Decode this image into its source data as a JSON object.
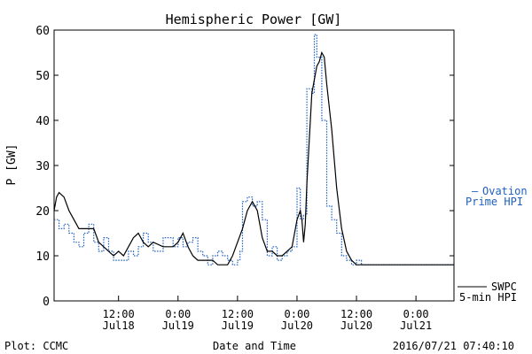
{
  "chart_data": {
    "type": "line",
    "title": "Hemispheric Power [GW]",
    "xlabel": "Date and Time",
    "ylabel": "P [GW]",
    "ylim": [
      0,
      60
    ],
    "yticks": [
      0,
      10,
      20,
      30,
      40,
      50,
      60
    ],
    "xlim": [
      "2016-07-17T23:00",
      "2016-07-21T07:40"
    ],
    "xticks": [
      {
        "t": "2016-07-18T12:00",
        "label1": "12:00",
        "label2": "Jul18"
      },
      {
        "t": "2016-07-19T00:00",
        "label1": "0:00",
        "label2": "Jul19"
      },
      {
        "t": "2016-07-19T12:00",
        "label1": "12:00",
        "label2": "Jul19"
      },
      {
        "t": "2016-07-20T00:00",
        "label1": "0:00",
        "label2": "Jul20"
      },
      {
        "t": "2016-07-20T12:00",
        "label1": "12:00",
        "label2": "Jul20"
      },
      {
        "t": "2016-07-21T00:00",
        "label1": "0:00",
        "label2": "Jul21"
      }
    ],
    "grid": false,
    "series": [
      {
        "name": "Ovation Prime HPI",
        "color": "#1f5fbf",
        "style": "dotted-step",
        "points": [
          [
            "2016-07-17T23:00",
            18
          ],
          [
            "2016-07-18T00:00",
            16
          ],
          [
            "2016-07-18T01:00",
            17
          ],
          [
            "2016-07-18T02:00",
            15
          ],
          [
            "2016-07-18T03:00",
            13
          ],
          [
            "2016-07-18T04:00",
            12
          ],
          [
            "2016-07-18T05:00",
            15
          ],
          [
            "2016-07-18T06:00",
            17
          ],
          [
            "2016-07-18T07:00",
            13
          ],
          [
            "2016-07-18T08:00",
            11
          ],
          [
            "2016-07-18T09:00",
            14
          ],
          [
            "2016-07-18T10:00",
            11
          ],
          [
            "2016-07-18T11:00",
            9
          ],
          [
            "2016-07-18T13:00",
            9
          ],
          [
            "2016-07-18T14:00",
            11
          ],
          [
            "2016-07-18T15:00",
            10
          ],
          [
            "2016-07-18T16:00",
            12
          ],
          [
            "2016-07-18T17:00",
            15
          ],
          [
            "2016-07-18T18:00",
            13
          ],
          [
            "2016-07-18T19:00",
            11
          ],
          [
            "2016-07-18T21:00",
            14
          ],
          [
            "2016-07-18T23:00",
            12
          ],
          [
            "2016-07-19T00:00",
            14
          ],
          [
            "2016-07-19T01:00",
            12
          ],
          [
            "2016-07-19T02:00",
            13
          ],
          [
            "2016-07-19T03:00",
            14
          ],
          [
            "2016-07-19T04:00",
            11
          ],
          [
            "2016-07-19T05:00",
            10
          ],
          [
            "2016-07-19T06:00",
            8
          ],
          [
            "2016-07-19T07:00",
            10
          ],
          [
            "2016-07-19T08:00",
            11
          ],
          [
            "2016-07-19T09:00",
            10
          ],
          [
            "2016-07-19T10:00",
            9
          ],
          [
            "2016-07-19T11:00",
            8
          ],
          [
            "2016-07-19T12:00",
            9
          ],
          [
            "2016-07-19T12:30",
            11
          ],
          [
            "2016-07-19T13:00",
            22
          ],
          [
            "2016-07-19T14:00",
            23
          ],
          [
            "2016-07-19T15:00",
            21
          ],
          [
            "2016-07-19T16:00",
            22
          ],
          [
            "2016-07-19T17:00",
            18
          ],
          [
            "2016-07-19T18:00",
            10
          ],
          [
            "2016-07-19T19:00",
            12
          ],
          [
            "2016-07-19T20:00",
            9
          ],
          [
            "2016-07-19T21:00",
            10
          ],
          [
            "2016-07-19T22:00",
            11
          ],
          [
            "2016-07-19T23:00",
            12
          ],
          [
            "2016-07-20T00:00",
            25
          ],
          [
            "2016-07-20T00:40",
            18
          ],
          [
            "2016-07-20T01:20",
            19
          ],
          [
            "2016-07-20T02:00",
            47
          ],
          [
            "2016-07-20T03:00",
            46
          ],
          [
            "2016-07-20T03:30",
            59
          ],
          [
            "2016-07-20T04:00",
            54
          ],
          [
            "2016-07-20T05:00",
            40
          ],
          [
            "2016-07-20T06:00",
            21
          ],
          [
            "2016-07-20T07:00",
            18
          ],
          [
            "2016-07-20T08:00",
            15
          ],
          [
            "2016-07-20T09:00",
            10
          ],
          [
            "2016-07-20T10:00",
            9
          ],
          [
            "2016-07-20T11:00",
            8
          ],
          [
            "2016-07-20T12:00",
            9
          ],
          [
            "2016-07-20T13:00",
            8
          ],
          [
            "2016-07-21T07:40",
            8
          ]
        ]
      },
      {
        "name": "SWPC 5-min HPI",
        "color": "#000000",
        "style": "solid",
        "points": [
          [
            "2016-07-17T23:00",
            20
          ],
          [
            "2016-07-17T23:30",
            23
          ],
          [
            "2016-07-18T00:00",
            24
          ],
          [
            "2016-07-18T01:00",
            23
          ],
          [
            "2016-07-18T02:00",
            20
          ],
          [
            "2016-07-18T03:00",
            18
          ],
          [
            "2016-07-18T04:00",
            16
          ],
          [
            "2016-07-18T07:00",
            16
          ],
          [
            "2016-07-18T08:00",
            13
          ],
          [
            "2016-07-18T09:00",
            12
          ],
          [
            "2016-07-18T10:00",
            11
          ],
          [
            "2016-07-18T11:00",
            10
          ],
          [
            "2016-07-18T12:00",
            11
          ],
          [
            "2016-07-18T13:00",
            10
          ],
          [
            "2016-07-18T14:00",
            12
          ],
          [
            "2016-07-18T15:00",
            14
          ],
          [
            "2016-07-18T16:00",
            15
          ],
          [
            "2016-07-18T17:00",
            13
          ],
          [
            "2016-07-18T18:00",
            12
          ],
          [
            "2016-07-18T19:00",
            13
          ],
          [
            "2016-07-18T21:00",
            12
          ],
          [
            "2016-07-18T23:00",
            12
          ],
          [
            "2016-07-19T00:00",
            13
          ],
          [
            "2016-07-19T01:00",
            15
          ],
          [
            "2016-07-19T02:00",
            12
          ],
          [
            "2016-07-19T03:00",
            10
          ],
          [
            "2016-07-19T04:00",
            9
          ],
          [
            "2016-07-19T07:00",
            9
          ],
          [
            "2016-07-19T08:00",
            8
          ],
          [
            "2016-07-19T10:00",
            8
          ],
          [
            "2016-07-19T11:00",
            10
          ],
          [
            "2016-07-19T12:00",
            13
          ],
          [
            "2016-07-19T13:00",
            16
          ],
          [
            "2016-07-19T14:00",
            20
          ],
          [
            "2016-07-19T15:00",
            22
          ],
          [
            "2016-07-19T16:00",
            20
          ],
          [
            "2016-07-19T17:00",
            14
          ],
          [
            "2016-07-19T18:00",
            11
          ],
          [
            "2016-07-19T19:00",
            11
          ],
          [
            "2016-07-19T20:00",
            10
          ],
          [
            "2016-07-19T21:00",
            10
          ],
          [
            "2016-07-19T22:00",
            11
          ],
          [
            "2016-07-19T23:00",
            12
          ],
          [
            "2016-07-20T00:00",
            18
          ],
          [
            "2016-07-20T00:40",
            20
          ],
          [
            "2016-07-20T01:00",
            18
          ],
          [
            "2016-07-20T01:20",
            13
          ],
          [
            "2016-07-20T01:40",
            17
          ],
          [
            "2016-07-20T02:00",
            26
          ],
          [
            "2016-07-20T03:00",
            46
          ],
          [
            "2016-07-20T03:30",
            49
          ],
          [
            "2016-07-20T04:00",
            52
          ],
          [
            "2016-07-20T04:30",
            53
          ],
          [
            "2016-07-20T05:00",
            55
          ],
          [
            "2016-07-20T05:30",
            54
          ],
          [
            "2016-07-20T06:00",
            48
          ],
          [
            "2016-07-20T07:00",
            38
          ],
          [
            "2016-07-20T08:00",
            25
          ],
          [
            "2016-07-20T09:00",
            16
          ],
          [
            "2016-07-20T10:00",
            11
          ],
          [
            "2016-07-20T11:00",
            9
          ],
          [
            "2016-07-20T12:00",
            8
          ],
          [
            "2016-07-20T13:00",
            8
          ],
          [
            "2016-07-21T07:40",
            8
          ]
        ]
      }
    ],
    "annotations": {
      "ovation_marker": "–",
      "ovation_line1": "Ovation",
      "ovation_line2": "Prime HPI",
      "swpc_line1": "SWPC",
      "swpc_line2": "5-min HPI"
    }
  },
  "footer": {
    "left": "Plot: CCMC",
    "right": "2016/07/21  07:40:10"
  }
}
